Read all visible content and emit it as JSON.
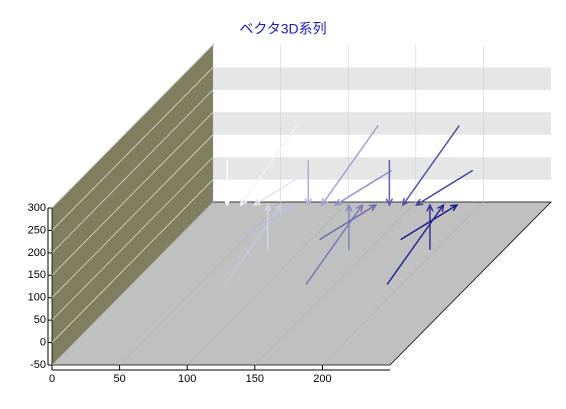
{
  "chart_data": {
    "type": "vector3d",
    "title": "ベクタ3D系列",
    "x": [
      70,
      80,
      90,
      100,
      110,
      120,
      130,
      140,
      150,
      160,
      170,
      180,
      190,
      200,
      210,
      220,
      230,
      240
    ],
    "y": [
      225,
      175,
      75,
      25,
      75,
      175,
      225,
      175,
      75,
      25,
      75,
      175,
      225,
      175,
      75,
      25,
      75,
      175
    ],
    "z": [
      50,
      85,
      85,
      50,
      15,
      15,
      50,
      85,
      85,
      50,
      15,
      15,
      50,
      85,
      85,
      50,
      15,
      15
    ],
    "dy": [
      -100,
      -50,
      50,
      100,
      50,
      -50,
      -100,
      -50,
      50,
      100,
      50,
      -50,
      -100,
      -50,
      50,
      100,
      50,
      -50
    ],
    "dz": [
      0,
      -35,
      -35,
      0,
      35,
      35,
      0,
      -35,
      -35,
      0,
      35,
      35,
      0,
      -35,
      -35,
      0,
      35,
      35
    ],
    "colors": [
      "#ffffff",
      "#1a1a8c"
    ],
    "xlim": [
      0,
      250
    ],
    "ylim": [
      -50,
      300
    ],
    "zlim": [
      0,
      100
    ],
    "xticks": [
      0,
      50,
      100,
      150,
      200
    ],
    "yticks": [
      -50,
      0,
      50,
      100,
      150,
      200,
      250,
      300
    ],
    "grid": true
  }
}
